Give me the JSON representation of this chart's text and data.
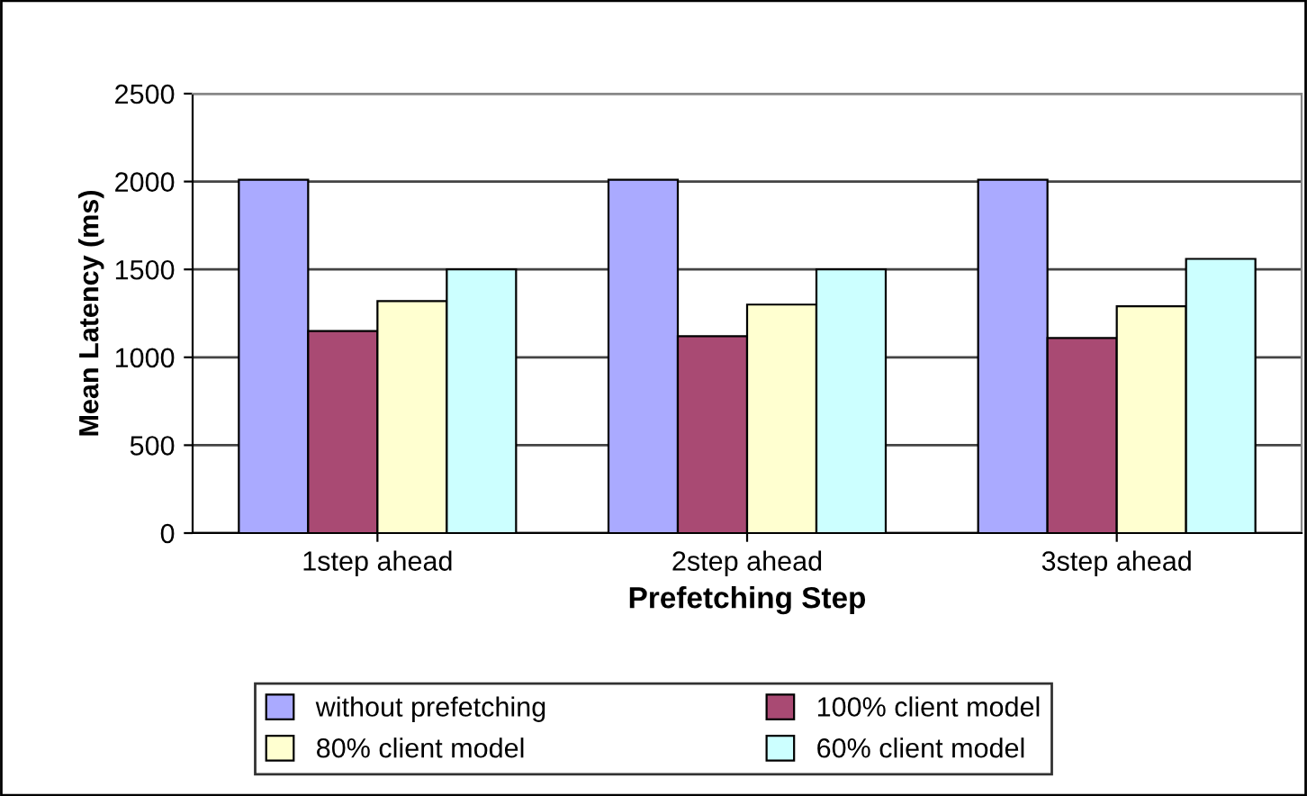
{
  "chart_data": {
    "type": "bar",
    "xlabel": "Prefetching Step",
    "ylabel": "Mean Latency (ms)",
    "categories": [
      "1step ahead",
      "2step ahead",
      "3step ahead"
    ],
    "series": [
      {
        "name": "without prefetching",
        "color": "#aaaaff",
        "values": [
          2010,
          2010,
          2010
        ]
      },
      {
        "name": "100% client model",
        "color": "#a94a73",
        "values": [
          1150,
          1120,
          1110
        ]
      },
      {
        "name": "80% client model",
        "color": "#ffffd0",
        "values": [
          1320,
          1300,
          1290
        ]
      },
      {
        "name": "60% client model",
        "color": "#ccffff",
        "values": [
          1500,
          1500,
          1560
        ]
      }
    ],
    "ylim": [
      0,
      2500
    ],
    "yticks": [
      0,
      500,
      1000,
      1500,
      2000,
      2500
    ],
    "grid": "y",
    "legend": "bottom"
  }
}
